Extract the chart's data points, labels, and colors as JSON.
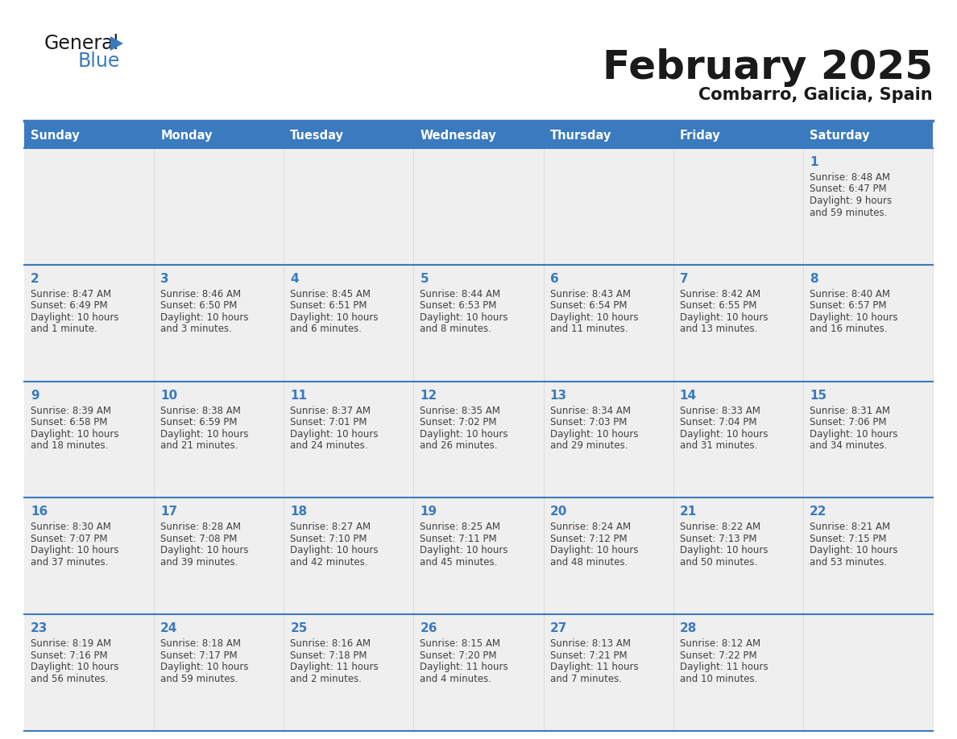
{
  "title": "February 2025",
  "subtitle": "Combarro, Galicia, Spain",
  "days_of_week": [
    "Sunday",
    "Monday",
    "Tuesday",
    "Wednesday",
    "Thursday",
    "Friday",
    "Saturday"
  ],
  "header_bg": "#3a7abf",
  "header_text": "#ffffff",
  "cell_bg_light": "#efefef",
  "separator_color": "#3a7abf",
  "day_number_color": "#3a7abf",
  "info_text_color": "#404040",
  "calendar_data": [
    [
      null,
      null,
      null,
      null,
      null,
      null,
      {
        "day": "1",
        "sunrise": "8:48 AM",
        "sunset": "6:47 PM",
        "daylight": "9 hours",
        "daylight2": "and 59 minutes."
      }
    ],
    [
      {
        "day": "2",
        "sunrise": "8:47 AM",
        "sunset": "6:49 PM",
        "daylight": "10 hours",
        "daylight2": "and 1 minute."
      },
      {
        "day": "3",
        "sunrise": "8:46 AM",
        "sunset": "6:50 PM",
        "daylight": "10 hours",
        "daylight2": "and 3 minutes."
      },
      {
        "day": "4",
        "sunrise": "8:45 AM",
        "sunset": "6:51 PM",
        "daylight": "10 hours",
        "daylight2": "and 6 minutes."
      },
      {
        "day": "5",
        "sunrise": "8:44 AM",
        "sunset": "6:53 PM",
        "daylight": "10 hours",
        "daylight2": "and 8 minutes."
      },
      {
        "day": "6",
        "sunrise": "8:43 AM",
        "sunset": "6:54 PM",
        "daylight": "10 hours",
        "daylight2": "and 11 minutes."
      },
      {
        "day": "7",
        "sunrise": "8:42 AM",
        "sunset": "6:55 PM",
        "daylight": "10 hours",
        "daylight2": "and 13 minutes."
      },
      {
        "day": "8",
        "sunrise": "8:40 AM",
        "sunset": "6:57 PM",
        "daylight": "10 hours",
        "daylight2": "and 16 minutes."
      }
    ],
    [
      {
        "day": "9",
        "sunrise": "8:39 AM",
        "sunset": "6:58 PM",
        "daylight": "10 hours",
        "daylight2": "and 18 minutes."
      },
      {
        "day": "10",
        "sunrise": "8:38 AM",
        "sunset": "6:59 PM",
        "daylight": "10 hours",
        "daylight2": "and 21 minutes."
      },
      {
        "day": "11",
        "sunrise": "8:37 AM",
        "sunset": "7:01 PM",
        "daylight": "10 hours",
        "daylight2": "and 24 minutes."
      },
      {
        "day": "12",
        "sunrise": "8:35 AM",
        "sunset": "7:02 PM",
        "daylight": "10 hours",
        "daylight2": "and 26 minutes."
      },
      {
        "day": "13",
        "sunrise": "8:34 AM",
        "sunset": "7:03 PM",
        "daylight": "10 hours",
        "daylight2": "and 29 minutes."
      },
      {
        "day": "14",
        "sunrise": "8:33 AM",
        "sunset": "7:04 PM",
        "daylight": "10 hours",
        "daylight2": "and 31 minutes."
      },
      {
        "day": "15",
        "sunrise": "8:31 AM",
        "sunset": "7:06 PM",
        "daylight": "10 hours",
        "daylight2": "and 34 minutes."
      }
    ],
    [
      {
        "day": "16",
        "sunrise": "8:30 AM",
        "sunset": "7:07 PM",
        "daylight": "10 hours",
        "daylight2": "and 37 minutes."
      },
      {
        "day": "17",
        "sunrise": "8:28 AM",
        "sunset": "7:08 PM",
        "daylight": "10 hours",
        "daylight2": "and 39 minutes."
      },
      {
        "day": "18",
        "sunrise": "8:27 AM",
        "sunset": "7:10 PM",
        "daylight": "10 hours",
        "daylight2": "and 42 minutes."
      },
      {
        "day": "19",
        "sunrise": "8:25 AM",
        "sunset": "7:11 PM",
        "daylight": "10 hours",
        "daylight2": "and 45 minutes."
      },
      {
        "day": "20",
        "sunrise": "8:24 AM",
        "sunset": "7:12 PM",
        "daylight": "10 hours",
        "daylight2": "and 48 minutes."
      },
      {
        "day": "21",
        "sunrise": "8:22 AM",
        "sunset": "7:13 PM",
        "daylight": "10 hours",
        "daylight2": "and 50 minutes."
      },
      {
        "day": "22",
        "sunrise": "8:21 AM",
        "sunset": "7:15 PM",
        "daylight": "10 hours",
        "daylight2": "and 53 minutes."
      }
    ],
    [
      {
        "day": "23",
        "sunrise": "8:19 AM",
        "sunset": "7:16 PM",
        "daylight": "10 hours",
        "daylight2": "and 56 minutes."
      },
      {
        "day": "24",
        "sunrise": "8:18 AM",
        "sunset": "7:17 PM",
        "daylight": "10 hours",
        "daylight2": "and 59 minutes."
      },
      {
        "day": "25",
        "sunrise": "8:16 AM",
        "sunset": "7:18 PM",
        "daylight": "11 hours",
        "daylight2": "and 2 minutes."
      },
      {
        "day": "26",
        "sunrise": "8:15 AM",
        "sunset": "7:20 PM",
        "daylight": "11 hours",
        "daylight2": "and 4 minutes."
      },
      {
        "day": "27",
        "sunrise": "8:13 AM",
        "sunset": "7:21 PM",
        "daylight": "11 hours",
        "daylight2": "and 7 minutes."
      },
      {
        "day": "28",
        "sunrise": "8:12 AM",
        "sunset": "7:22 PM",
        "daylight": "11 hours",
        "daylight2": "and 10 minutes."
      },
      null
    ]
  ],
  "logo_triangle_color": "#3a7abf"
}
